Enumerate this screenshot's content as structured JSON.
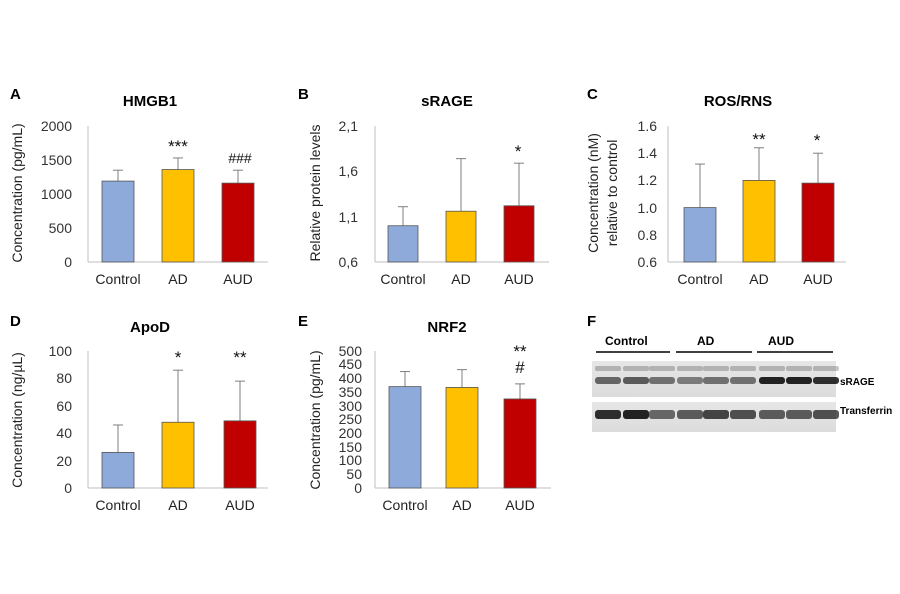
{
  "chart_data": [
    {
      "panel": "A",
      "type": "bar",
      "title": "HMGB1",
      "ylabel": "Concentration (pg/mL)",
      "categories": [
        "Control",
        "AD",
        "AUD"
      ],
      "values": [
        1190,
        1360,
        1160
      ],
      "errors": [
        160,
        170,
        190
      ],
      "annotations": [
        "",
        "***",
        "###"
      ],
      "ylim": [
        0,
        2000
      ],
      "yticks": [
        "0",
        "500",
        "1000",
        "1500",
        "2000"
      ],
      "colors": [
        "#8eaadb",
        "#ffc000",
        "#c00000"
      ]
    },
    {
      "panel": "B",
      "type": "bar",
      "title": "sRAGE",
      "ylabel": "Relative protein levels",
      "categories": [
        "Control",
        "AD",
        "AUD"
      ],
      "values": [
        1.0,
        1.16,
        1.22
      ],
      "errors": [
        0.21,
        0.58,
        0.47
      ],
      "annotations": [
        "",
        "",
        "*"
      ],
      "ylim": [
        0.6,
        2.1
      ],
      "yticks": [
        "0,6",
        "1,1",
        "1,6",
        "2,1"
      ],
      "colors": [
        "#8eaadb",
        "#ffc000",
        "#c00000"
      ]
    },
    {
      "panel": "C",
      "type": "bar",
      "title": "ROS/RNS",
      "ylabel": [
        "Concentration (nM)",
        "relative to control"
      ],
      "categories": [
        "Control",
        "AD",
        "AUD"
      ],
      "values": [
        1.0,
        1.2,
        1.18
      ],
      "errors": [
        0.32,
        0.24,
        0.22
      ],
      "annotations": [
        "",
        "**",
        "*"
      ],
      "ylim": [
        0.6,
        1.6
      ],
      "yticks": [
        "0.6",
        "0.8",
        "1.0",
        "1.2",
        "1.4",
        "1.6"
      ],
      "colors": [
        "#8eaadb",
        "#ffc000",
        "#c00000"
      ]
    },
    {
      "panel": "D",
      "type": "bar",
      "title": "ApoD",
      "ylabel": "Concentration (ng/µL)",
      "categories": [
        "Control",
        "AD",
        "AUD"
      ],
      "values": [
        26,
        48,
        49
      ],
      "errors": [
        20,
        38,
        29
      ],
      "annotations": [
        "",
        "*",
        "**"
      ],
      "ylim": [
        0,
        100
      ],
      "yticks": [
        "0",
        "20",
        "40",
        "60",
        "80",
        "100"
      ],
      "colors": [
        "#8eaadb",
        "#ffc000",
        "#c00000"
      ]
    },
    {
      "panel": "E",
      "type": "bar",
      "title": "NRF2",
      "ylabel": "Concentration (pg/mL)",
      "categories": [
        "Control",
        "AD",
        "AUD"
      ],
      "values": [
        370,
        367,
        325
      ],
      "errors": [
        55,
        65,
        55
      ],
      "annotations": [
        "",
        "",
        "**\n#"
      ],
      "ylim": [
        0,
        500
      ],
      "yticks": [
        "0",
        "50",
        "100",
        "150",
        "200",
        "250",
        "300",
        "350",
        "400",
        "450",
        "500"
      ],
      "colors": [
        "#8eaadb",
        "#ffc000",
        "#c00000"
      ]
    }
  ],
  "blot": {
    "panel": "F",
    "groups": [
      "Control",
      "AD",
      "AUD"
    ],
    "bands": [
      "sRAGE",
      "Transferrin"
    ]
  }
}
